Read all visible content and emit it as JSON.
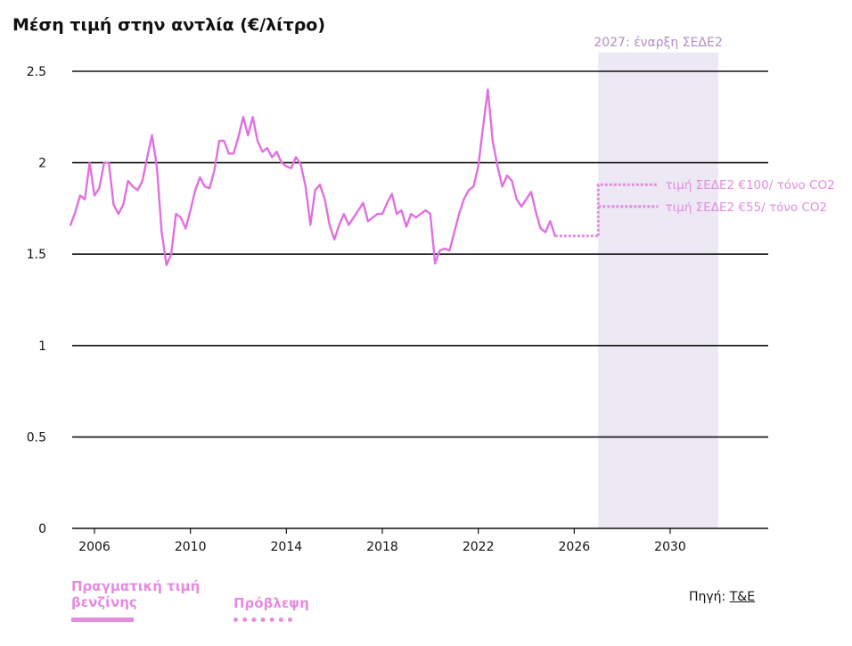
{
  "chart_data": {
    "type": "line",
    "title": "Μέση τιμή στην αντλία (€/λίτρο)",
    "xlim": [
      2005,
      2035
    ],
    "ylim": [
      0,
      2.5
    ],
    "y_ticks": [
      {
        "value": 0,
        "label": "0"
      },
      {
        "value": 0.5,
        "label": "0.5"
      },
      {
        "value": 1,
        "label": "1"
      },
      {
        "value": 1.5,
        "label": "1.5"
      },
      {
        "value": 2,
        "label": "2"
      },
      {
        "value": 2.5,
        "label": "2.5"
      }
    ],
    "x_ticks": [
      {
        "value": 2006,
        "label": "2006"
      },
      {
        "value": 2010,
        "label": "2010"
      },
      {
        "value": 2014,
        "label": "2014"
      },
      {
        "value": 2018,
        "label": "2018"
      },
      {
        "value": 2022,
        "label": "2022"
      },
      {
        "value": 2026,
        "label": "2026"
      },
      {
        "value": 2030,
        "label": "2030"
      }
    ],
    "grid": "horizontal",
    "shaded_region": {
      "x": [
        2027,
        2032
      ],
      "label": "2027: έναρξη ΣΕΔΕ2",
      "color": "#ece8f4"
    },
    "series": [
      {
        "name": "Πραγματική τιμή βενζίνης",
        "style": "solid",
        "color": "#e070e0",
        "x": [
          2005.0,
          2005.2,
          2005.4,
          2005.6,
          2005.8,
          2006.0,
          2006.2,
          2006.4,
          2006.6,
          2006.8,
          2007.0,
          2007.2,
          2007.4,
          2007.6,
          2007.8,
          2008.0,
          2008.2,
          2008.4,
          2008.6,
          2008.8,
          2009.0,
          2009.2,
          2009.4,
          2009.6,
          2009.8,
          2010.0,
          2010.2,
          2010.4,
          2010.6,
          2010.8,
          2011.0,
          2011.2,
          2011.4,
          2011.6,
          2011.8,
          2012.0,
          2012.2,
          2012.4,
          2012.6,
          2012.8,
          2013.0,
          2013.2,
          2013.4,
          2013.6,
          2013.8,
          2014.0,
          2014.2,
          2014.4,
          2014.6,
          2014.8,
          2015.0,
          2015.2,
          2015.4,
          2015.6,
          2015.8,
          2016.0,
          2016.2,
          2016.4,
          2016.6,
          2016.8,
          2017.0,
          2017.2,
          2017.4,
          2017.6,
          2017.8,
          2018.0,
          2018.2,
          2018.4,
          2018.6,
          2018.8,
          2019.0,
          2019.2,
          2019.4,
          2019.6,
          2019.8,
          2020.0,
          2020.2,
          2020.4,
          2020.6,
          2020.8,
          2021.0,
          2021.2,
          2021.4,
          2021.6,
          2021.8,
          2022.0,
          2022.2,
          2022.4,
          2022.6,
          2022.8,
          2023.0,
          2023.2,
          2023.4,
          2023.6,
          2023.8,
          2024.0,
          2024.2,
          2024.4,
          2024.6,
          2024.8,
          2025.0,
          2025.2
        ],
        "values": [
          1.66,
          1.73,
          1.82,
          1.8,
          2.0,
          1.82,
          1.86,
          2.0,
          2.0,
          1.77,
          1.72,
          1.77,
          1.9,
          1.87,
          1.85,
          1.9,
          2.03,
          2.15,
          1.98,
          1.62,
          1.44,
          1.5,
          1.72,
          1.7,
          1.64,
          1.74,
          1.85,
          1.92,
          1.87,
          1.86,
          1.96,
          2.12,
          2.12,
          2.05,
          2.05,
          2.14,
          2.25,
          2.15,
          2.25,
          2.12,
          2.06,
          2.08,
          2.03,
          2.06,
          2.0,
          1.98,
          1.97,
          2.03,
          1.99,
          1.87,
          1.66,
          1.85,
          1.88,
          1.8,
          1.66,
          1.58,
          1.66,
          1.72,
          1.66,
          1.7,
          1.74,
          1.78,
          1.68,
          1.7,
          1.72,
          1.72,
          1.78,
          1.83,
          1.72,
          1.74,
          1.65,
          1.72,
          1.7,
          1.72,
          1.74,
          1.72,
          1.45,
          1.52,
          1.53,
          1.52,
          1.62,
          1.72,
          1.8,
          1.85,
          1.87,
          1.98,
          2.2,
          2.4,
          2.12,
          1.98,
          1.87,
          1.93,
          1.9,
          1.8,
          1.76,
          1.8,
          1.84,
          1.73,
          1.64,
          1.62,
          1.68,
          1.6
        ]
      },
      {
        "name": "Πρόβλεψη",
        "style": "dotted",
        "color": "#e48ce0",
        "x": [
          2025.2,
          2027.0
        ],
        "values": [
          1.6,
          1.6
        ]
      },
      {
        "name": "τιμή ΣΕΔΕ2 €100/ τόνο CO2",
        "style": "dotted",
        "color": "#e48ce0",
        "x": [
          2027.0,
          2027.0,
          2029.5
        ],
        "values": [
          1.6,
          1.88,
          1.88
        ]
      },
      {
        "name": "τιμή ΣΕΔΕ2 €55/ τόνο CO2",
        "style": "dotted",
        "color": "#e48ce0",
        "x": [
          2027.0,
          2029.5
        ],
        "values": [
          1.76,
          1.76
        ]
      }
    ],
    "legend": {
      "placement": "bottom-left",
      "entries": [
        {
          "label": "Πραγματική τιμή βενζίνης",
          "style": "solid"
        },
        {
          "label": "Πρόβλεψη",
          "style": "dotted"
        }
      ]
    }
  },
  "source": {
    "prefix": "Πηγή: ",
    "link_text": "T&E"
  }
}
